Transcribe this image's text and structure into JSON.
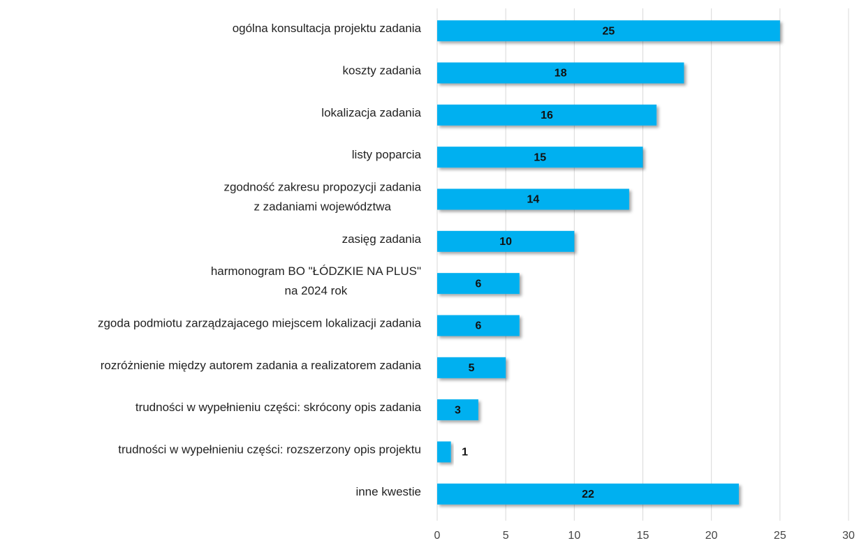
{
  "chart_data": {
    "type": "hbar",
    "categories": [
      "ogólna konsultacja projektu zadania",
      "koszty zadania",
      "lokalizacja zadania",
      "listy poparcia",
      "zgodność  zakresu propozycji zadania\nz zadaniami województwa",
      "zasięg zadania",
      "harmonogram BO \"ŁÓDZKIE NA PLUS\"\nna 2024 rok",
      "zgoda podmiotu zarządzajacego miejscem lokalizacji zadania",
      "rozróżnienie między autorem zadania a realizatorem zadania",
      "trudności w wypełnieniu części: skrócony opis zadania",
      "trudności w wypełnieniu części:  rozszerzony opis projektu",
      "inne kwestie"
    ],
    "values": [
      25,
      18,
      16,
      15,
      14,
      10,
      6,
      6,
      5,
      3,
      1,
      22
    ],
    "color": "#00b0f0",
    "xlim": [
      0,
      30
    ],
    "xticks": [
      0,
      5,
      10,
      15,
      20,
      25,
      30
    ],
    "grid": true
  }
}
